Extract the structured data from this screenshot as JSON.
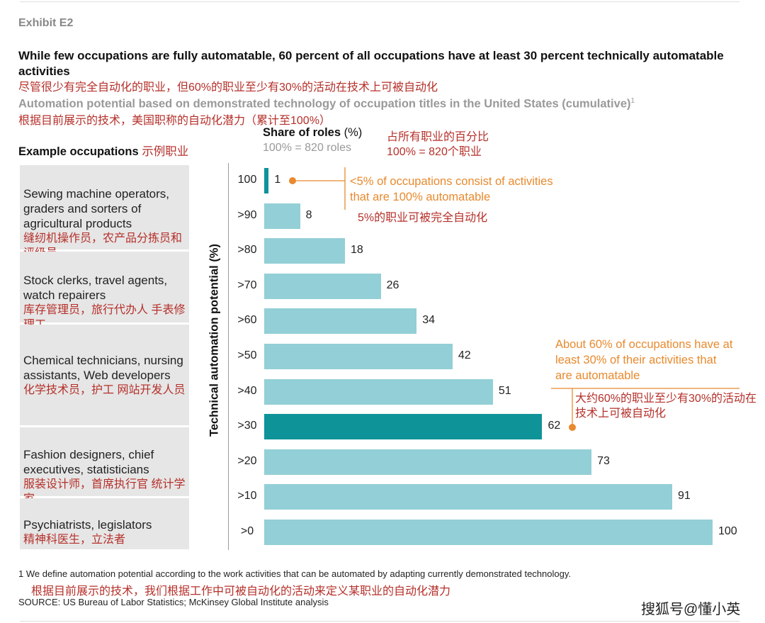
{
  "exhibit": "Exhibit E2",
  "title": "While few occupations are fully automatable, 60 percent of all occupations have at least 30 percent technically automatable activities",
  "title_cn": "尽管很少有完全自动化的职业，但60%的职业至少有30%的活动在技术上可被自动化",
  "subtitle": "Automation potential based on demonstrated technology of occupation titles in the United States (cumulative)",
  "subtitle_sup": "1",
  "subtitle_cn": "根据目前展示的技术，美国职称的自动化潜力（累计至100%）",
  "left_header": "Example occupations",
  "left_header_cn": "示例职业",
  "share_header": "Share of roles",
  "share_unit": "(%)",
  "share_header_cn": "占所有职业的百分比",
  "share_base": "100% = 820 roles",
  "share_base_cn": "100% = 820个职业",
  "groups": [
    {
      "en": "Sewing machine operators, graders and sorters of agricultural products",
      "cn": "缝纫机操作员，农产品分拣员和评级员"
    },
    {
      "en": "Stock clerks, travel agents, watch repairers",
      "cn": "库存管理员，旅行代办人 手表修理工"
    },
    {
      "en": "Chemical technicians, nursing assistants, Web developers",
      "cn": "化学技术员，护工 网站开发人员"
    },
    {
      "en": "Fashion designers, chief executives, statisticians",
      "cn": "服装设计师，首席执行官 统计学家"
    },
    {
      "en": "Psychiatrists, legislators",
      "cn": "精神科医生，立法者"
    }
  ],
  "annotations": {
    "top": "<5% of occupations consist of activities that are 100% automatable",
    "top_cn": "5%的职业可被完全自动化",
    "mid": "About 60% of occupations have at least 30% of their activities that are automatable",
    "mid_cn": "大约60%的职业至少有30%的活动在技术上可被自动化"
  },
  "footnote": "1  We define automation potential according to the work activities that can be automated by adapting currently demonstrated technology.",
  "footnote_cn": "根据目前展示的技术，我们根据工作中可被自动化的活动来定义某职业的自动化潜力",
  "source": "SOURCE: US Bureau of Labor Statistics; McKinsey Global Institute analysis",
  "watermark": "搜狐号@懂小英",
  "colors": {
    "bar": "#93cfd6",
    "highlight": "#0e9398",
    "annotation": "#e88a2e",
    "chinese": "#b5302a"
  },
  "chart_data": {
    "type": "bar",
    "orientation": "horizontal",
    "ylabel": "Technical automation potential (%)",
    "xlabel": "Share of roles (%)",
    "categories": [
      "100",
      ">90",
      ">80",
      ">70",
      ">60",
      ">50",
      ">40",
      ">30",
      ">20",
      ">10",
      ">0"
    ],
    "values": [
      1,
      8,
      18,
      26,
      34,
      42,
      51,
      62,
      73,
      91,
      100
    ],
    "highlighted": [
      "100",
      ">30"
    ],
    "xlim": [
      0,
      100
    ],
    "grid": false
  }
}
